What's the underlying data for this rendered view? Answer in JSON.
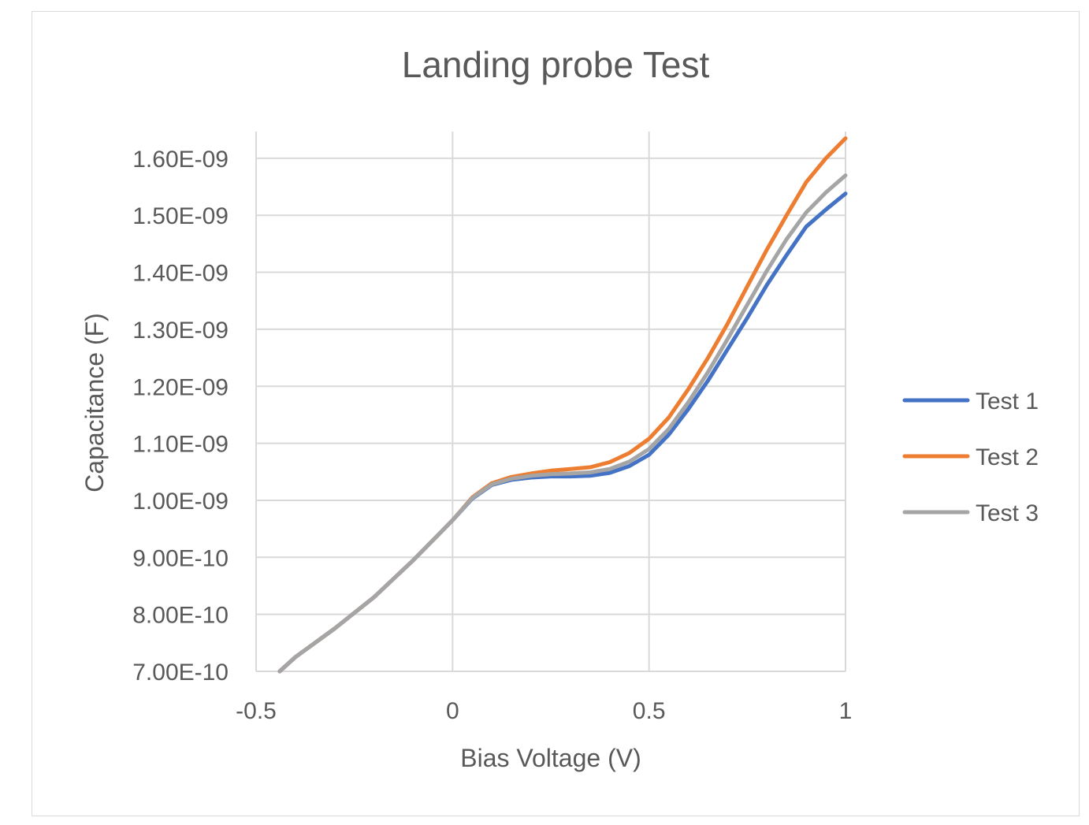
{
  "chart_data": {
    "type": "line",
    "title": "Landing probe Test",
    "xlabel": "Bias Voltage (V)",
    "ylabel": "Capacitance (F)",
    "xlim": [
      -0.5,
      1
    ],
    "ylim": [
      7e-10,
      1.65e-09
    ],
    "x_ticks": [
      -0.5,
      0,
      0.5,
      1
    ],
    "x_tick_labels": [
      "-0.5",
      "0",
      "0.5",
      "1"
    ],
    "y_ticks": [
      7e-10,
      8e-10,
      9e-10,
      1e-09,
      1.1e-09,
      1.2e-09,
      1.3e-09,
      1.4e-09,
      1.5e-09,
      1.6e-09
    ],
    "y_tick_labels": [
      "7.00E-10",
      "8.00E-10",
      "9.00E-10",
      "1.00E-09",
      "1.10E-09",
      "1.20E-09",
      "1.30E-09",
      "1.40E-09",
      "1.50E-09",
      "1.60E-09"
    ],
    "grid": true,
    "legend_position": "right",
    "x": [
      -0.44,
      -0.4,
      -0.3,
      -0.2,
      -0.1,
      -0.05,
      0,
      0.05,
      0.1,
      0.15,
      0.2,
      0.25,
      0.3,
      0.35,
      0.4,
      0.45,
      0.5,
      0.55,
      0.6,
      0.65,
      0.7,
      0.75,
      0.8,
      0.85,
      0.9,
      0.95,
      1.0
    ],
    "series": [
      {
        "name": "Test 1",
        "color": "#4472c4",
        "values": [
          7e-10,
          7.25e-10,
          7.75e-10,
          8.3e-10,
          8.95e-10,
          9.3e-10,
          9.65e-10,
          1.003e-09,
          1.027e-09,
          1.036e-09,
          1.04e-09,
          1.042e-09,
          1.042e-09,
          1.043e-09,
          1.048e-09,
          1.06e-09,
          1.08e-09,
          1.115e-09,
          1.16e-09,
          1.21e-09,
          1.265e-09,
          1.32e-09,
          1.378e-09,
          1.43e-09,
          1.48e-09,
          1.51e-09,
          1.538e-09
        ]
      },
      {
        "name": "Test 2",
        "color": "#ed7d31",
        "values": [
          7e-10,
          7.25e-10,
          7.75e-10,
          8.3e-10,
          8.95e-10,
          9.3e-10,
          9.65e-10,
          1.005e-09,
          1.03e-09,
          1.041e-09,
          1.047e-09,
          1.052e-09,
          1.055e-09,
          1.058e-09,
          1.067e-09,
          1.083e-09,
          1.108e-09,
          1.145e-09,
          1.195e-09,
          1.25e-09,
          1.31e-09,
          1.375e-09,
          1.44e-09,
          1.5e-09,
          1.558e-09,
          1.6e-09,
          1.635e-09
        ]
      },
      {
        "name": "Test 3",
        "color": "#a5a5a5",
        "values": [
          7e-10,
          7.25e-10,
          7.75e-10,
          8.3e-10,
          8.95e-10,
          9.3e-10,
          9.65e-10,
          1.004e-09,
          1.028e-09,
          1.038e-09,
          1.043e-09,
          1.046e-09,
          1.047e-09,
          1.049e-09,
          1.055e-09,
          1.068e-09,
          1.09e-09,
          1.125e-09,
          1.172e-09,
          1.225e-09,
          1.283e-09,
          1.343e-09,
          1.403e-09,
          1.458e-09,
          1.505e-09,
          1.54e-09,
          1.57e-09
        ]
      }
    ]
  }
}
